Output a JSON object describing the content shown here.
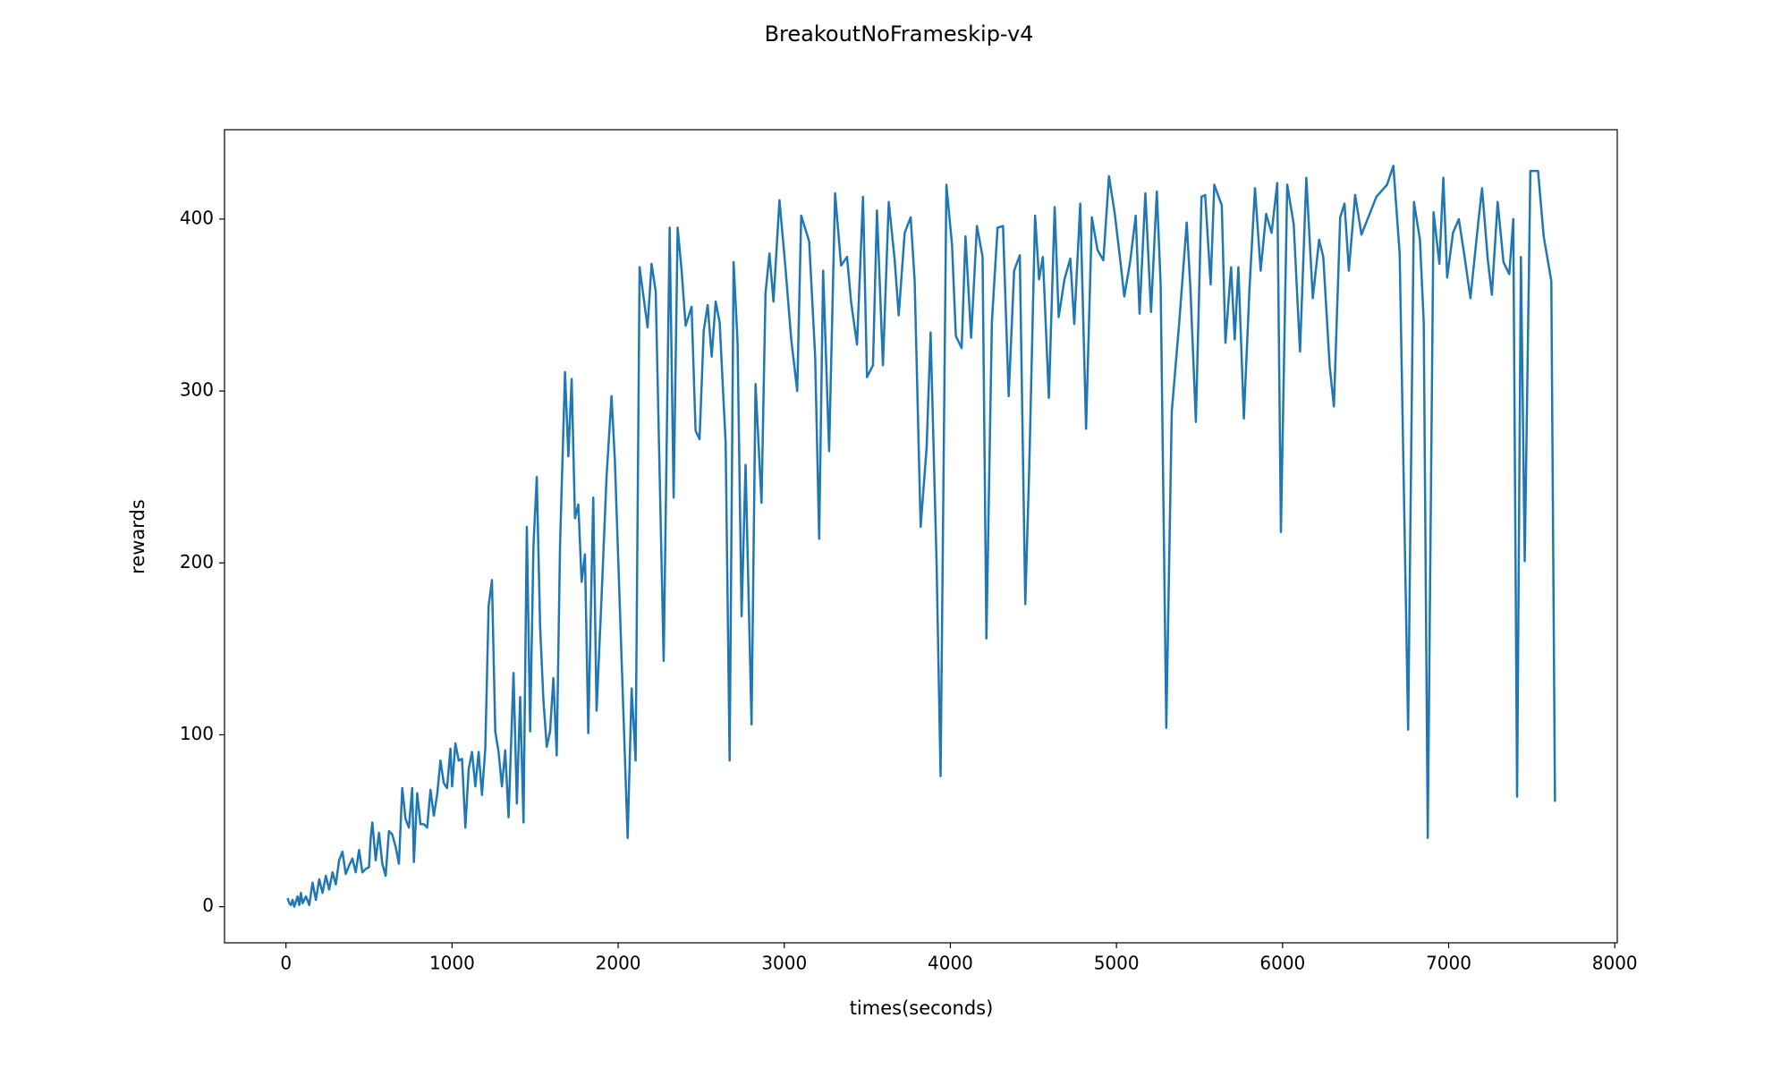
{
  "chart_data": {
    "type": "line",
    "title": "BreakoutNoFrameskip-v4",
    "x_label": "times(seconds)",
    "y_label": "rewards",
    "color": "#1f77b4",
    "xlim": [
      -370,
      8015
    ],
    "ylim": [
      -21,
      452
    ],
    "xticks": [
      0,
      1000,
      2000,
      3000,
      4000,
      5000,
      6000,
      7000,
      8000
    ],
    "yticks": [
      0,
      100,
      200,
      300,
      400
    ],
    "x": [
      10,
      20,
      30,
      40,
      50,
      60,
      70,
      80,
      90,
      100,
      120,
      140,
      160,
      180,
      200,
      220,
      240,
      260,
      280,
      300,
      320,
      340,
      360,
      380,
      400,
      420,
      440,
      460,
      480,
      500,
      510,
      520,
      540,
      560,
      580,
      600,
      620,
      640,
      660,
      680,
      700,
      720,
      740,
      760,
      770,
      790,
      810,
      830,
      850,
      870,
      890,
      910,
      930,
      950,
      970,
      990,
      1000,
      1020,
      1040,
      1060,
      1080,
      1100,
      1120,
      1140,
      1160,
      1180,
      1200,
      1220,
      1240,
      1260,
      1280,
      1300,
      1320,
      1340,
      1370,
      1390,
      1410,
      1430,
      1450,
      1470,
      1490,
      1510,
      1530,
      1550,
      1570,
      1590,
      1610,
      1630,
      1650,
      1680,
      1700,
      1720,
      1740,
      1760,
      1780,
      1800,
      1820,
      1850,
      1870,
      1900,
      1930,
      1960,
      1980,
      2057,
      2081,
      2105,
      2129,
      2177,
      2201,
      2226,
      2274,
      2310,
      2334,
      2358,
      2382,
      2406,
      2442,
      2466,
      2490,
      2515,
      2539,
      2563,
      2587,
      2611,
      2647,
      2671,
      2695,
      2719,
      2743,
      2767,
      2803,
      2827,
      2863,
      2887,
      2911,
      2935,
      2971,
      3006,
      3042,
      3078,
      3102,
      3150,
      3186,
      3210,
      3234,
      3270,
      3306,
      3342,
      3378,
      3402,
      3438,
      3474,
      3498,
      3534,
      3558,
      3594,
      3629,
      3665,
      3689,
      3725,
      3761,
      3785,
      3821,
      3857,
      3881,
      3917,
      3941,
      3976,
      4010,
      4033,
      4068,
      4091,
      4125,
      4160,
      4194,
      4217,
      4250,
      4284,
      4317,
      4351,
      4384,
      4418,
      4451,
      4475,
      4510,
      4534,
      4557,
      4593,
      4628,
      4652,
      4687,
      4722,
      4746,
      4782,
      4817,
      4852,
      4886,
      4921,
      4955,
      4990,
      5024,
      5047,
      5082,
      5116,
      5139,
      5174,
      5208,
      5243,
      5266,
      5300,
      5333,
      5378,
      5423,
      5445,
      5478,
      5512,
      5534,
      5567,
      5589,
      5634,
      5656,
      5690,
      5712,
      5734,
      5767,
      5801,
      5834,
      5868,
      5901,
      5934,
      5968,
      5990,
      6028,
      6067,
      6105,
      6143,
      6182,
      6220,
      6245,
      6284,
      6309,
      6347,
      6373,
      6399,
      6437,
      6475,
      6565,
      6629,
      6667,
      6705,
      6756,
      6791,
      6827,
      6850,
      6874,
      6909,
      6944,
      6968,
      6991,
      7026,
      7061,
      7096,
      7131,
      7178,
      7201,
      7236,
      7260,
      7295,
      7330,
      7365,
      7389,
      7412,
      7435,
      7458,
      7492,
      7538,
      7572,
      7618,
      7640
    ],
    "values": [
      5,
      2,
      1,
      4,
      0,
      3,
      6,
      1,
      8,
      2,
      6,
      1,
      14,
      4,
      16,
      8,
      18,
      10,
      20,
      13,
      27,
      32,
      19,
      24,
      28,
      20,
      33,
      20,
      22,
      23,
      40,
      49,
      27,
      43,
      25,
      18,
      44,
      42,
      35,
      25,
      69,
      51,
      46,
      69,
      26,
      66,
      48,
      48,
      46,
      68,
      53,
      65,
      85,
      72,
      69,
      92,
      70,
      95,
      85,
      86,
      46,
      80,
      90,
      70,
      90,
      65,
      92,
      175,
      190,
      102,
      90,
      70,
      91,
      52,
      136,
      60,
      122,
      49,
      221,
      102,
      210,
      250,
      163,
      120,
      93,
      102,
      133,
      88,
      210,
      311,
      262,
      307,
      226,
      234,
      189,
      205,
      101,
      238,
      114,
      180,
      250,
      297,
      260,
      40,
      127,
      85,
      372,
      337,
      374,
      358,
      143,
      395,
      238,
      395,
      370,
      338,
      349,
      277,
      272,
      335,
      350,
      320,
      352,
      340,
      270,
      85,
      375,
      328,
      169,
      257,
      106,
      304,
      235,
      357,
      380,
      352,
      411,
      373,
      330,
      300,
      402,
      387,
      320,
      214,
      370,
      265,
      415,
      373,
      378,
      352,
      327,
      413,
      308,
      315,
      405,
      315,
      410,
      376,
      344,
      392,
      401,
      364,
      221,
      267,
      334,
      200,
      76,
      420,
      385,
      332,
      325,
      390,
      331,
      396,
      378,
      156,
      340,
      395,
      396,
      297,
      370,
      379,
      176,
      256,
      402,
      365,
      378,
      296,
      407,
      343,
      365,
      377,
      339,
      409,
      278,
      401,
      382,
      376,
      425,
      403,
      375,
      355,
      375,
      402,
      345,
      415,
      346,
      416,
      362,
      104,
      288,
      340,
      398,
      360,
      282,
      413,
      414,
      362,
      420,
      408,
      328,
      372,
      330,
      372,
      284,
      360,
      418,
      370,
      403,
      392,
      421,
      218,
      420,
      397,
      323,
      424,
      354,
      388,
      378,
      314,
      291,
      401,
      409,
      370,
      414,
      391,
      413,
      420,
      431,
      380,
      103,
      410,
      388,
      340,
      40,
      404,
      374,
      424,
      366,
      392,
      400,
      378,
      354,
      398,
      418,
      376,
      356,
      410,
      375,
      368,
      400,
      64,
      378,
      201,
      428,
      428,
      390,
      364,
      61
    ]
  }
}
